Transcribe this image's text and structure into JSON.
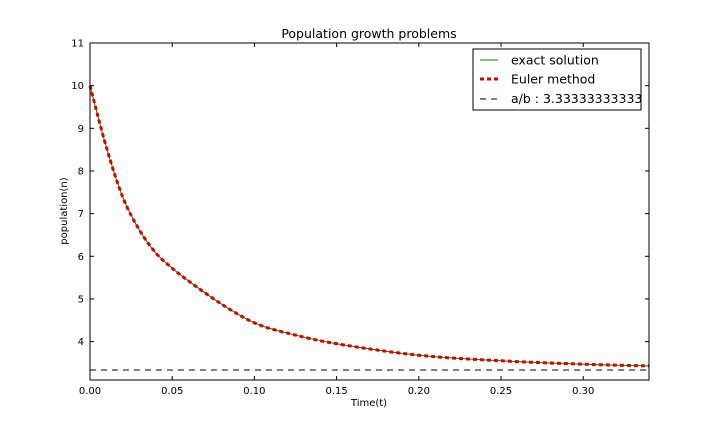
{
  "chart_data": {
    "type": "line",
    "title": "Population growth problems",
    "xlabel": "Time(t)",
    "ylabel": "population(n)",
    "xlim": [
      0.0,
      0.34
    ],
    "ylim": [
      3.1,
      11.0
    ],
    "x_ticks": [
      0.0,
      0.05,
      0.1,
      0.15,
      0.2,
      0.25,
      0.3
    ],
    "x_tick_labels": [
      "0.00",
      "0.05",
      "0.10",
      "0.15",
      "0.20",
      "0.25",
      "0.30"
    ],
    "y_ticks": [
      4,
      5,
      6,
      7,
      8,
      9,
      10,
      11
    ],
    "y_tick_labels": [
      "4",
      "5",
      "6",
      "7",
      "8",
      "9",
      "10",
      "11"
    ],
    "grid": false,
    "legend_position": "top-right",
    "series": [
      {
        "name": "exact solution",
        "color": "#008000",
        "style": "solid",
        "x": [
          0.0,
          0.01,
          0.02,
          0.03,
          0.04,
          0.05,
          0.06,
          0.08,
          0.1,
          0.12,
          0.15,
          0.2,
          0.25,
          0.3,
          0.34
        ],
        "y": [
          10.0,
          8.55,
          7.38,
          6.62,
          6.08,
          5.72,
          5.42,
          4.88,
          4.44,
          4.2,
          3.95,
          3.68,
          3.55,
          3.47,
          3.43
        ]
      },
      {
        "name": "Euler method",
        "color": "#dd0000",
        "style": "dashed",
        "x": [
          0.0,
          0.01,
          0.02,
          0.03,
          0.04,
          0.05,
          0.06,
          0.08,
          0.1,
          0.12,
          0.15,
          0.2,
          0.25,
          0.3,
          0.34
        ],
        "y": [
          10.0,
          8.55,
          7.38,
          6.62,
          6.08,
          5.72,
          5.42,
          4.88,
          4.44,
          4.2,
          3.95,
          3.68,
          3.55,
          3.47,
          3.43
        ]
      },
      {
        "name": "a/b : 3.33333333333",
        "color": "#000000",
        "style": "dashed",
        "x": [
          0.0,
          0.34
        ],
        "y": [
          3.33333333333,
          3.33333333333
        ]
      }
    ]
  }
}
